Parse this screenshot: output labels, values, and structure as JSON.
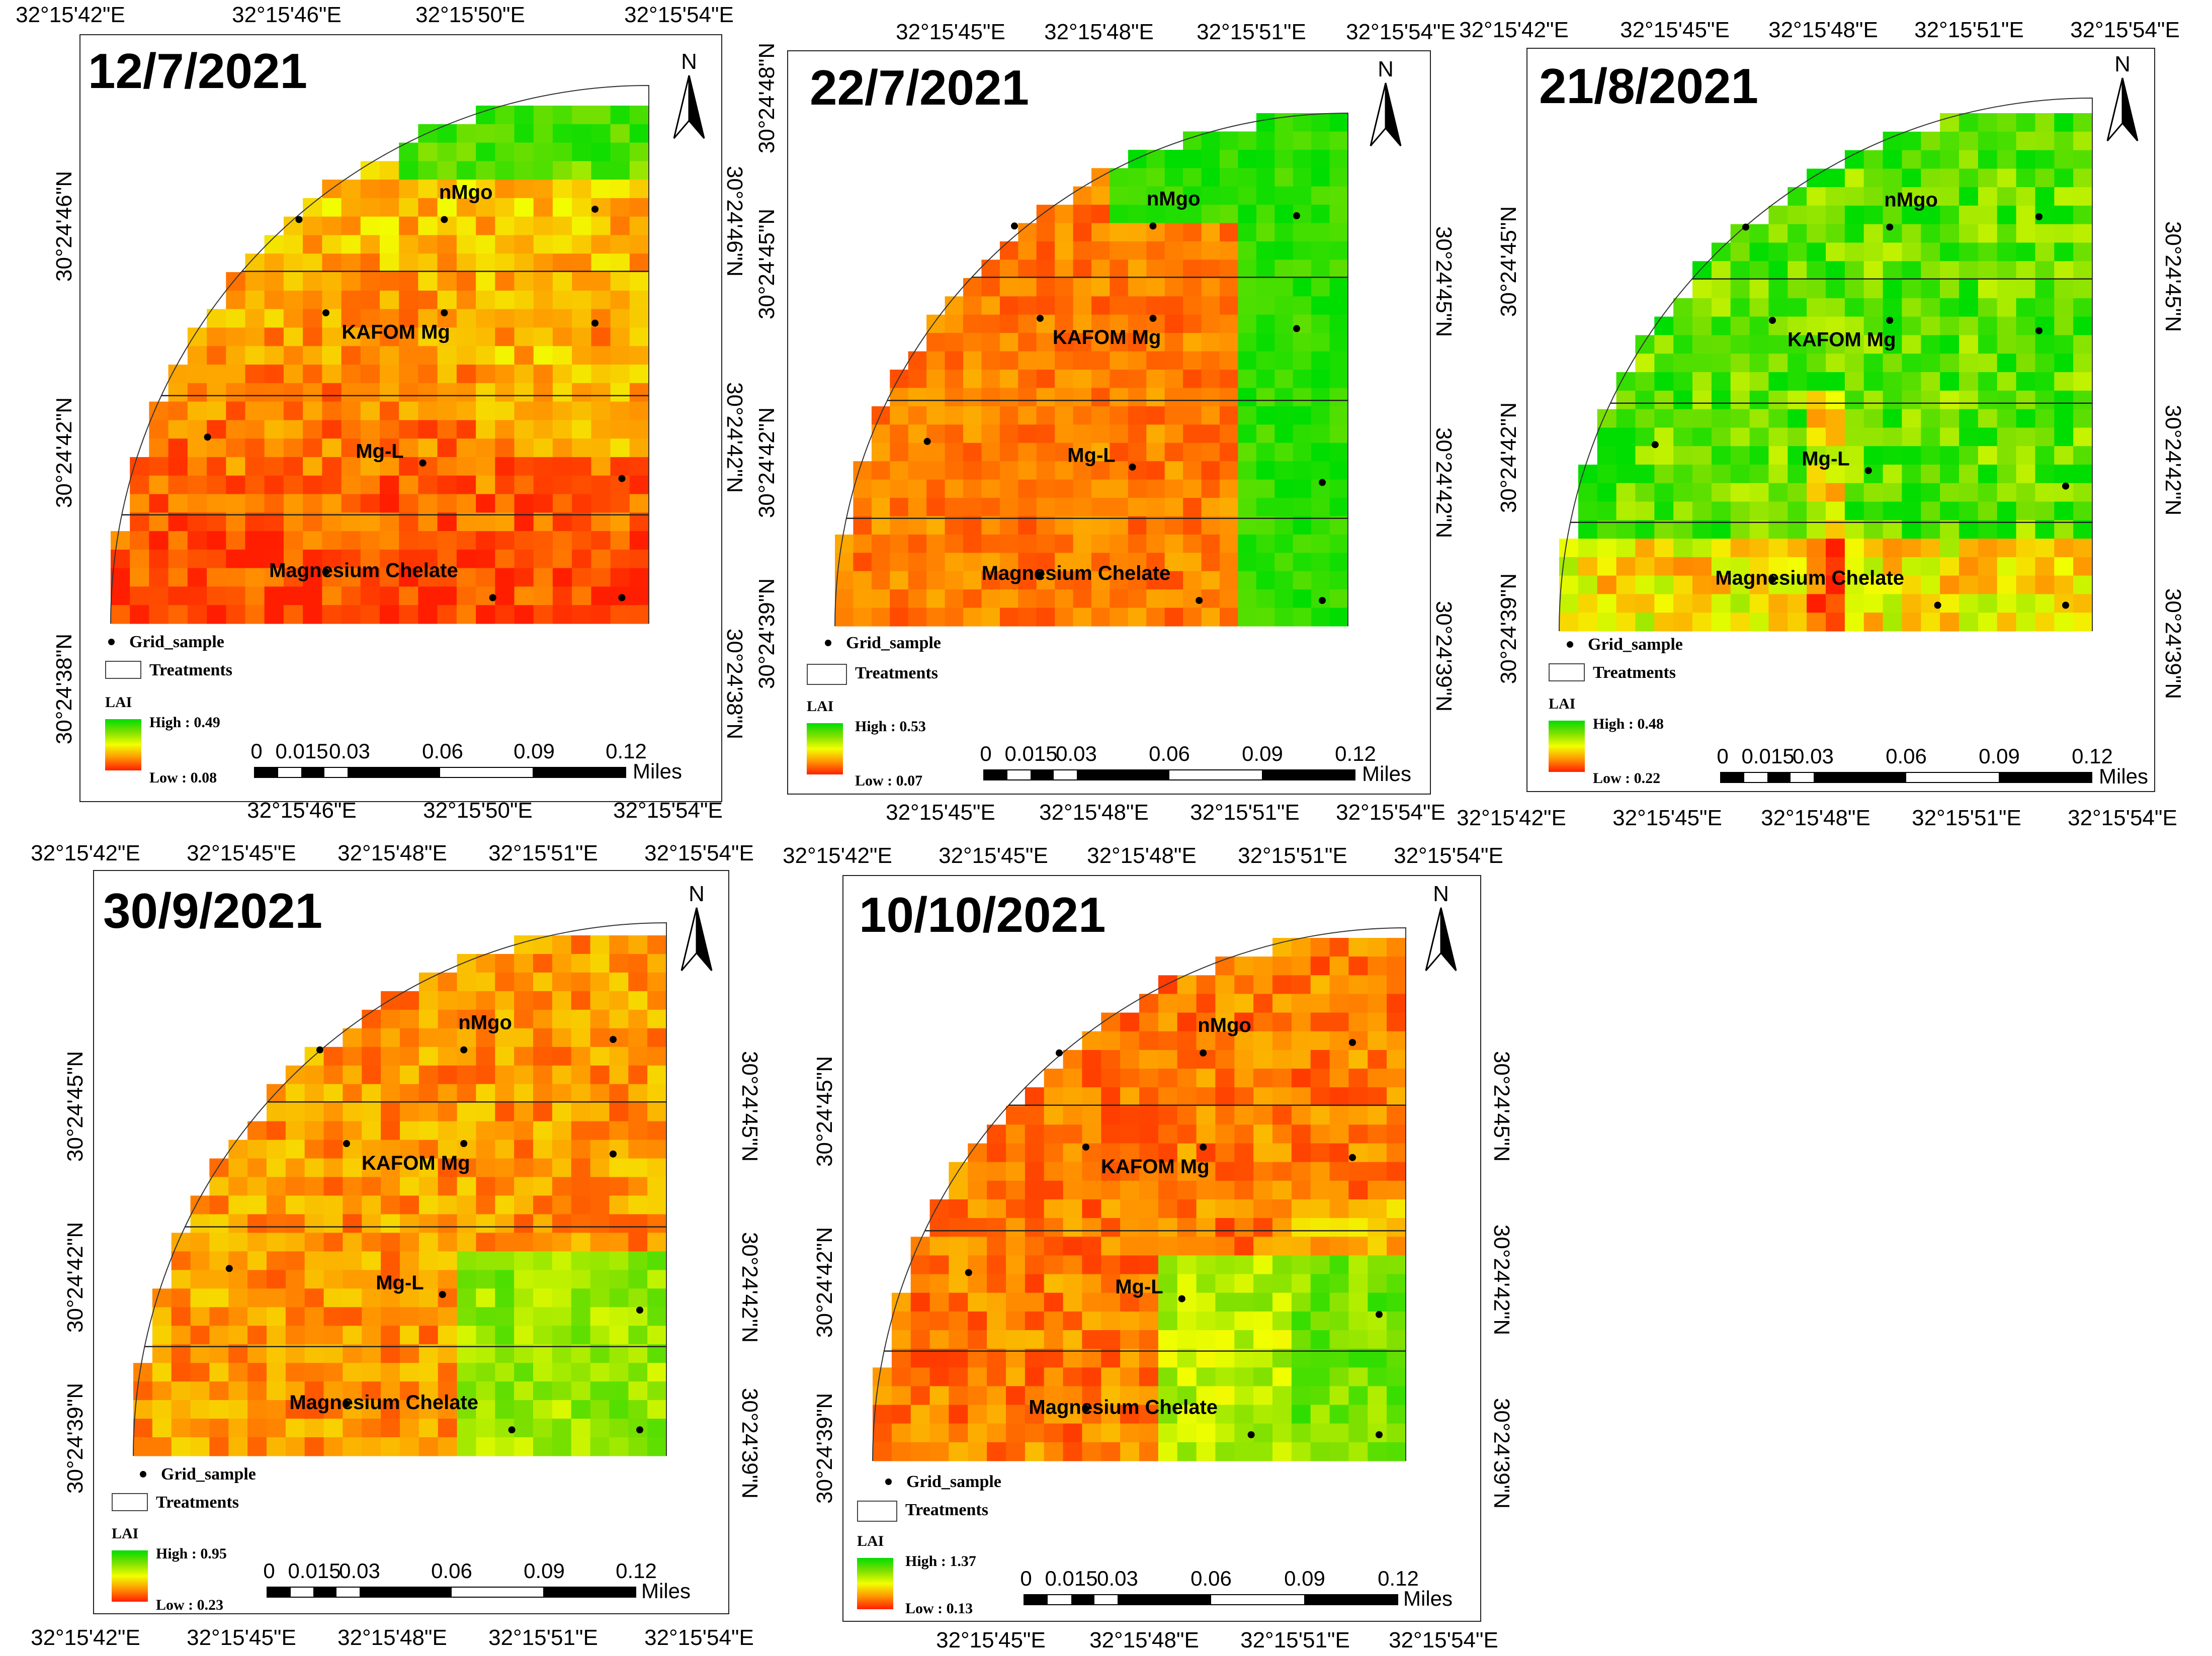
{
  "legend_text": {
    "grid_sample": "Grid_sample",
    "treatments": "Treatments",
    "lai": "LAI",
    "units": "Miles",
    "north": "N",
    "scale_ticks": [
      "0",
      "0.015",
      "0.03",
      "0.06",
      "0.09",
      "0.12"
    ]
  },
  "zones": [
    "nMgo",
    "KAFOM Mg",
    "Mg-L",
    "Magnesium Chelate"
  ],
  "colors": {
    "low": "#ff1e00",
    "mid": "#f2ff00",
    "high": "#00dd00",
    "frame": "#222222"
  },
  "panels": [
    {
      "date": "12/7/2021",
      "lai_high": "High : 0.49",
      "lai_low": "Low : 0.08",
      "top_lon": [
        "32°15'42\"E",
        "32°15'46\"E",
        "32°15'50\"E",
        "32°15'54\"E"
      ],
      "bottom_lon": [
        "32°15'46\"E",
        "32°15'50\"E",
        "32°15'54\"E"
      ],
      "left_lat": [
        "30°24'46\"N",
        "30°24'42\"N",
        "30°24'38\"N"
      ],
      "right_lat": [
        "30°24'46\"N",
        "30°24'42\"N",
        "30°24'38\"N"
      ]
    },
    {
      "date": "22/7/2021",
      "lai_high": "High : 0.53",
      "lai_low": "Low : 0.07",
      "top_lon": [
        "32°15'45\"E",
        "32°15'48\"E",
        "32°15'51\"E",
        "32°15'54\"E"
      ],
      "bottom_lon": [
        "32°15'45\"E",
        "32°15'48\"E",
        "32°15'51\"E",
        "32°15'54\"E"
      ],
      "left_lat": [
        "30°24'48\"N",
        "30°24'45\"N",
        "30°24'42\"N",
        "30°24'39\"N"
      ],
      "right_lat": [
        "30°24'45\"N",
        "30°24'42\"N",
        "30°24'39\"N"
      ]
    },
    {
      "date": "21/8/2021",
      "lai_high": "High : 0.48",
      "lai_low": "Low : 0.22",
      "top_lon": [
        "32°15'42\"E",
        "32°15'45\"E",
        "32°15'48\"E",
        "32°15'51\"E",
        "32°15'54\"E"
      ],
      "bottom_lon": [
        "32°15'42\"E",
        "32°15'45\"E",
        "32°15'48\"E",
        "32°15'51\"E",
        "32°15'54\"E"
      ],
      "left_lat": [
        "30°24'45\"N",
        "30°24'42\"N",
        "30°24'39\"N"
      ],
      "right_lat": [
        "30°24'45\"N",
        "30°24'42\"N",
        "30°24'39\"N"
      ]
    },
    {
      "date": "30/9/2021",
      "lai_high": "High : 0.95",
      "lai_low": "Low : 0.23",
      "top_lon": [
        "32°15'42\"E",
        "32°15'45\"E",
        "32°15'48\"E",
        "32°15'51\"E",
        "32°15'54\"E"
      ],
      "bottom_lon": [
        "32°15'42\"E",
        "32°15'45\"E",
        "32°15'48\"E",
        "32°15'51\"E",
        "32°15'54\"E"
      ],
      "left_lat": [
        "30°24'45\"N",
        "30°24'42\"N",
        "30°24'39\"N"
      ],
      "right_lat": [
        "30°24'45\"N",
        "30°24'42\"N",
        "30°24'39\"N"
      ]
    },
    {
      "date": "10/10/2021",
      "lai_high": "High : 1.37",
      "lai_low": "Low : 0.13",
      "top_lon": [
        "32°15'42\"E",
        "32°15'45\"E",
        "32°15'48\"E",
        "32°15'51\"E",
        "32°15'54\"E"
      ],
      "bottom_lon": [
        "32°15'45\"E",
        "32°15'48\"E",
        "32°15'51\"E",
        "32°15'54\"E"
      ],
      "left_lat": [
        "30°24'45\"N",
        "30°24'42\"N",
        "30°24'39\"N"
      ],
      "right_lat": [
        "30°24'45\"N",
        "30°24'42\"N",
        "30°24'39\"N"
      ]
    }
  ]
}
